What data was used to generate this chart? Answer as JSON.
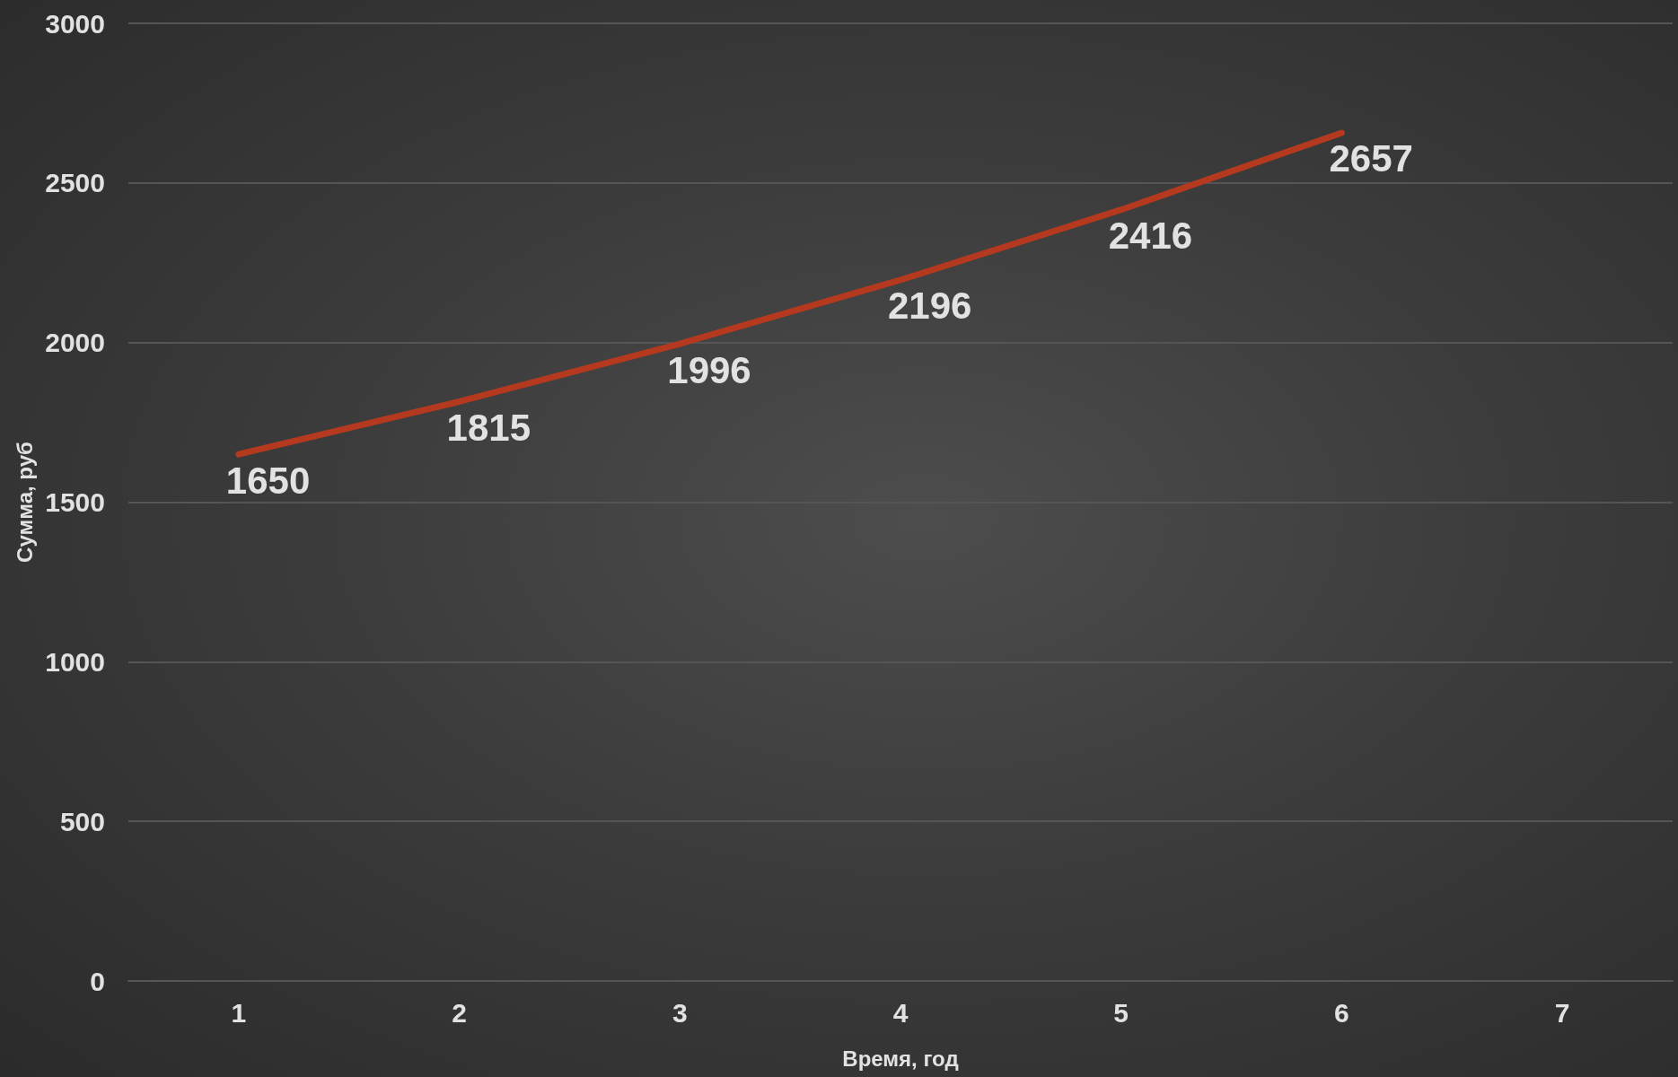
{
  "chart_data": {
    "type": "line",
    "xlabel": "Время, год",
    "ylabel": "Сумма, руб",
    "categories": [
      "1",
      "2",
      "3",
      "4",
      "5",
      "6",
      "7"
    ],
    "series": [
      {
        "color": "#b5391f",
        "values": [
          1650,
          1815,
          1996,
          2196,
          2416,
          2657,
          null
        ]
      }
    ],
    "ylim": [
      0,
      3000
    ],
    "yticks": [
      0,
      500,
      1000,
      1500,
      2000,
      2500,
      3000
    ],
    "grid": "y",
    "marker": "none",
    "line_style": "solid",
    "data_labels": true
  }
}
